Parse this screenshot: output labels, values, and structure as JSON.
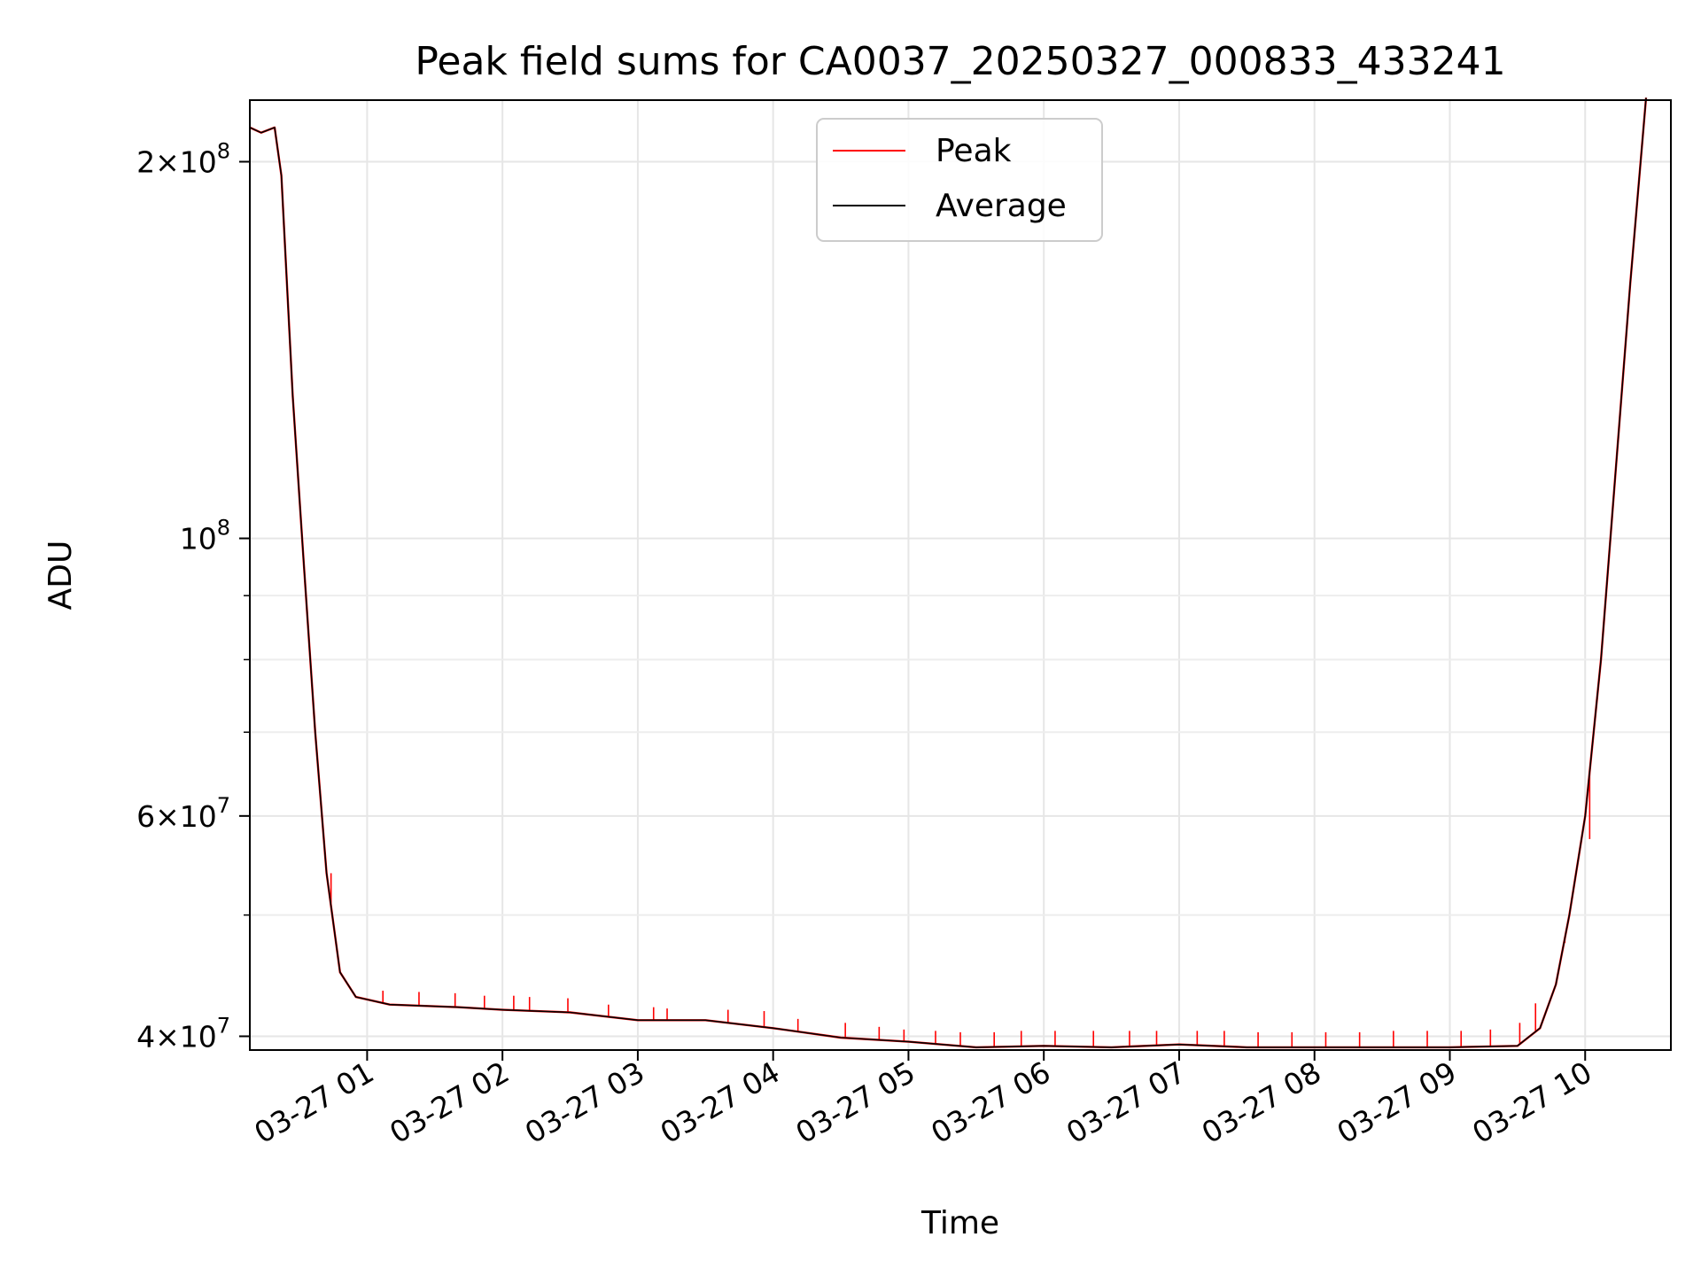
{
  "chart_data": {
    "type": "line",
    "title": "Peak field sums for CA0037_20250327_000833_433241",
    "xlabel": "Time",
    "ylabel": "ADU",
    "yscale": "log",
    "xlim": [
      "2025-03-27 00:08",
      "2025-03-27 10:38"
    ],
    "ylim": [
      39000000,
      224000000
    ],
    "x_ticks": [
      "03-27 01",
      "03-27 02",
      "03-27 03",
      "03-27 04",
      "03-27 05",
      "03-27 06",
      "03-27 07",
      "03-27 08",
      "03-27 09",
      "03-27 10"
    ],
    "y_ticks": [
      {
        "value": 40000000,
        "mantissa": "4",
        "exp": "7"
      },
      {
        "value": 60000000,
        "mantissa": "6",
        "exp": "7"
      },
      {
        "value": 100000000,
        "mantissa": "",
        "exp": "8"
      },
      {
        "value": 200000000,
        "mantissa": "2",
        "exp": "8"
      }
    ],
    "y_minor_ticks": [
      50000000,
      70000000,
      80000000,
      90000000
    ],
    "grid": true,
    "legend": {
      "placement": "upper-center"
    },
    "series": [
      {
        "name": "Peak",
        "color": "#ff0000",
        "note_points": "baseline follows Average; spikes listed separately",
        "spikes": [
          [
            "2025-03-27 00:44",
            54000000
          ],
          [
            "2025-03-27 01:07",
            43500000
          ],
          [
            "2025-03-27 01:23",
            43400000
          ],
          [
            "2025-03-27 01:39",
            43300000
          ],
          [
            "2025-03-27 01:52",
            43100000
          ],
          [
            "2025-03-27 02:05",
            43100000
          ],
          [
            "2025-03-27 02:12",
            43000000
          ],
          [
            "2025-03-27 02:29",
            42900000
          ],
          [
            "2025-03-27 02:47",
            42400000
          ],
          [
            "2025-03-27 03:07",
            42200000
          ],
          [
            "2025-03-27 03:13",
            42100000
          ],
          [
            "2025-03-27 03:40",
            42000000
          ],
          [
            "2025-03-27 03:56",
            41900000
          ],
          [
            "2025-03-27 04:11",
            41300000
          ],
          [
            "2025-03-27 04:32",
            41000000
          ],
          [
            "2025-03-27 04:47",
            40700000
          ],
          [
            "2025-03-27 04:58",
            40500000
          ],
          [
            "2025-03-27 05:12",
            40400000
          ],
          [
            "2025-03-27 05:23",
            40300000
          ],
          [
            "2025-03-27 05:38",
            40300000
          ],
          [
            "2025-03-27 05:50",
            40400000
          ],
          [
            "2025-03-27 06:05",
            40400000
          ],
          [
            "2025-03-27 06:22",
            40400000
          ],
          [
            "2025-03-27 06:38",
            40400000
          ],
          [
            "2025-03-27 06:50",
            40400000
          ],
          [
            "2025-03-27 07:08",
            40400000
          ],
          [
            "2025-03-27 07:20",
            40400000
          ],
          [
            "2025-03-27 07:35",
            40300000
          ],
          [
            "2025-03-27 07:50",
            40300000
          ],
          [
            "2025-03-27 08:05",
            40300000
          ],
          [
            "2025-03-27 08:20",
            40300000
          ],
          [
            "2025-03-27 08:35",
            40400000
          ],
          [
            "2025-03-27 08:50",
            40400000
          ],
          [
            "2025-03-27 09:05",
            40400000
          ],
          [
            "2025-03-27 09:18",
            40500000
          ],
          [
            "2025-03-27 09:31",
            41000000
          ],
          [
            "2025-03-27 09:38",
            42500000
          ],
          [
            "2025-03-27 09:51",
            47500000
          ],
          [
            "2025-03-27 10:02",
            57500000
          ]
        ]
      },
      {
        "name": "Average",
        "color": "#000000",
        "points": [
          [
            "2025-03-27 00:08",
            213000000
          ],
          [
            "2025-03-27 00:13",
            211000000
          ],
          [
            "2025-03-27 00:19",
            213000000
          ],
          [
            "2025-03-27 00:22",
            195000000
          ],
          [
            "2025-03-27 00:27",
            130000000
          ],
          [
            "2025-03-27 00:32",
            95000000
          ],
          [
            "2025-03-27 00:37",
            70000000
          ],
          [
            "2025-03-27 00:42",
            54000000
          ],
          [
            "2025-03-27 00:48",
            45000000
          ],
          [
            "2025-03-27 00:55",
            43000000
          ],
          [
            "2025-03-27 01:10",
            42400000
          ],
          [
            "2025-03-27 01:40",
            42200000
          ],
          [
            "2025-03-27 02:00",
            42000000
          ],
          [
            "2025-03-27 02:30",
            41800000
          ],
          [
            "2025-03-27 03:00",
            41200000
          ],
          [
            "2025-03-27 03:30",
            41200000
          ],
          [
            "2025-03-27 04:00",
            40600000
          ],
          [
            "2025-03-27 04:30",
            39900000
          ],
          [
            "2025-03-27 05:00",
            39600000
          ],
          [
            "2025-03-27 05:30",
            39200000
          ],
          [
            "2025-03-27 06:00",
            39300000
          ],
          [
            "2025-03-27 06:30",
            39200000
          ],
          [
            "2025-03-27 07:00",
            39400000
          ],
          [
            "2025-03-27 07:30",
            39200000
          ],
          [
            "2025-03-27 08:00",
            39200000
          ],
          [
            "2025-03-27 08:30",
            39200000
          ],
          [
            "2025-03-27 09:00",
            39200000
          ],
          [
            "2025-03-27 09:30",
            39300000
          ],
          [
            "2025-03-27 09:40",
            40600000
          ],
          [
            "2025-03-27 09:47",
            44000000
          ],
          [
            "2025-03-27 09:53",
            50000000
          ],
          [
            "2025-03-27 10:00",
            60000000
          ],
          [
            "2025-03-27 10:07",
            80000000
          ],
          [
            "2025-03-27 10:13",
            110000000
          ],
          [
            "2025-03-27 10:20",
            160000000
          ],
          [
            "2025-03-27 10:27",
            225000000
          ]
        ]
      }
    ]
  }
}
